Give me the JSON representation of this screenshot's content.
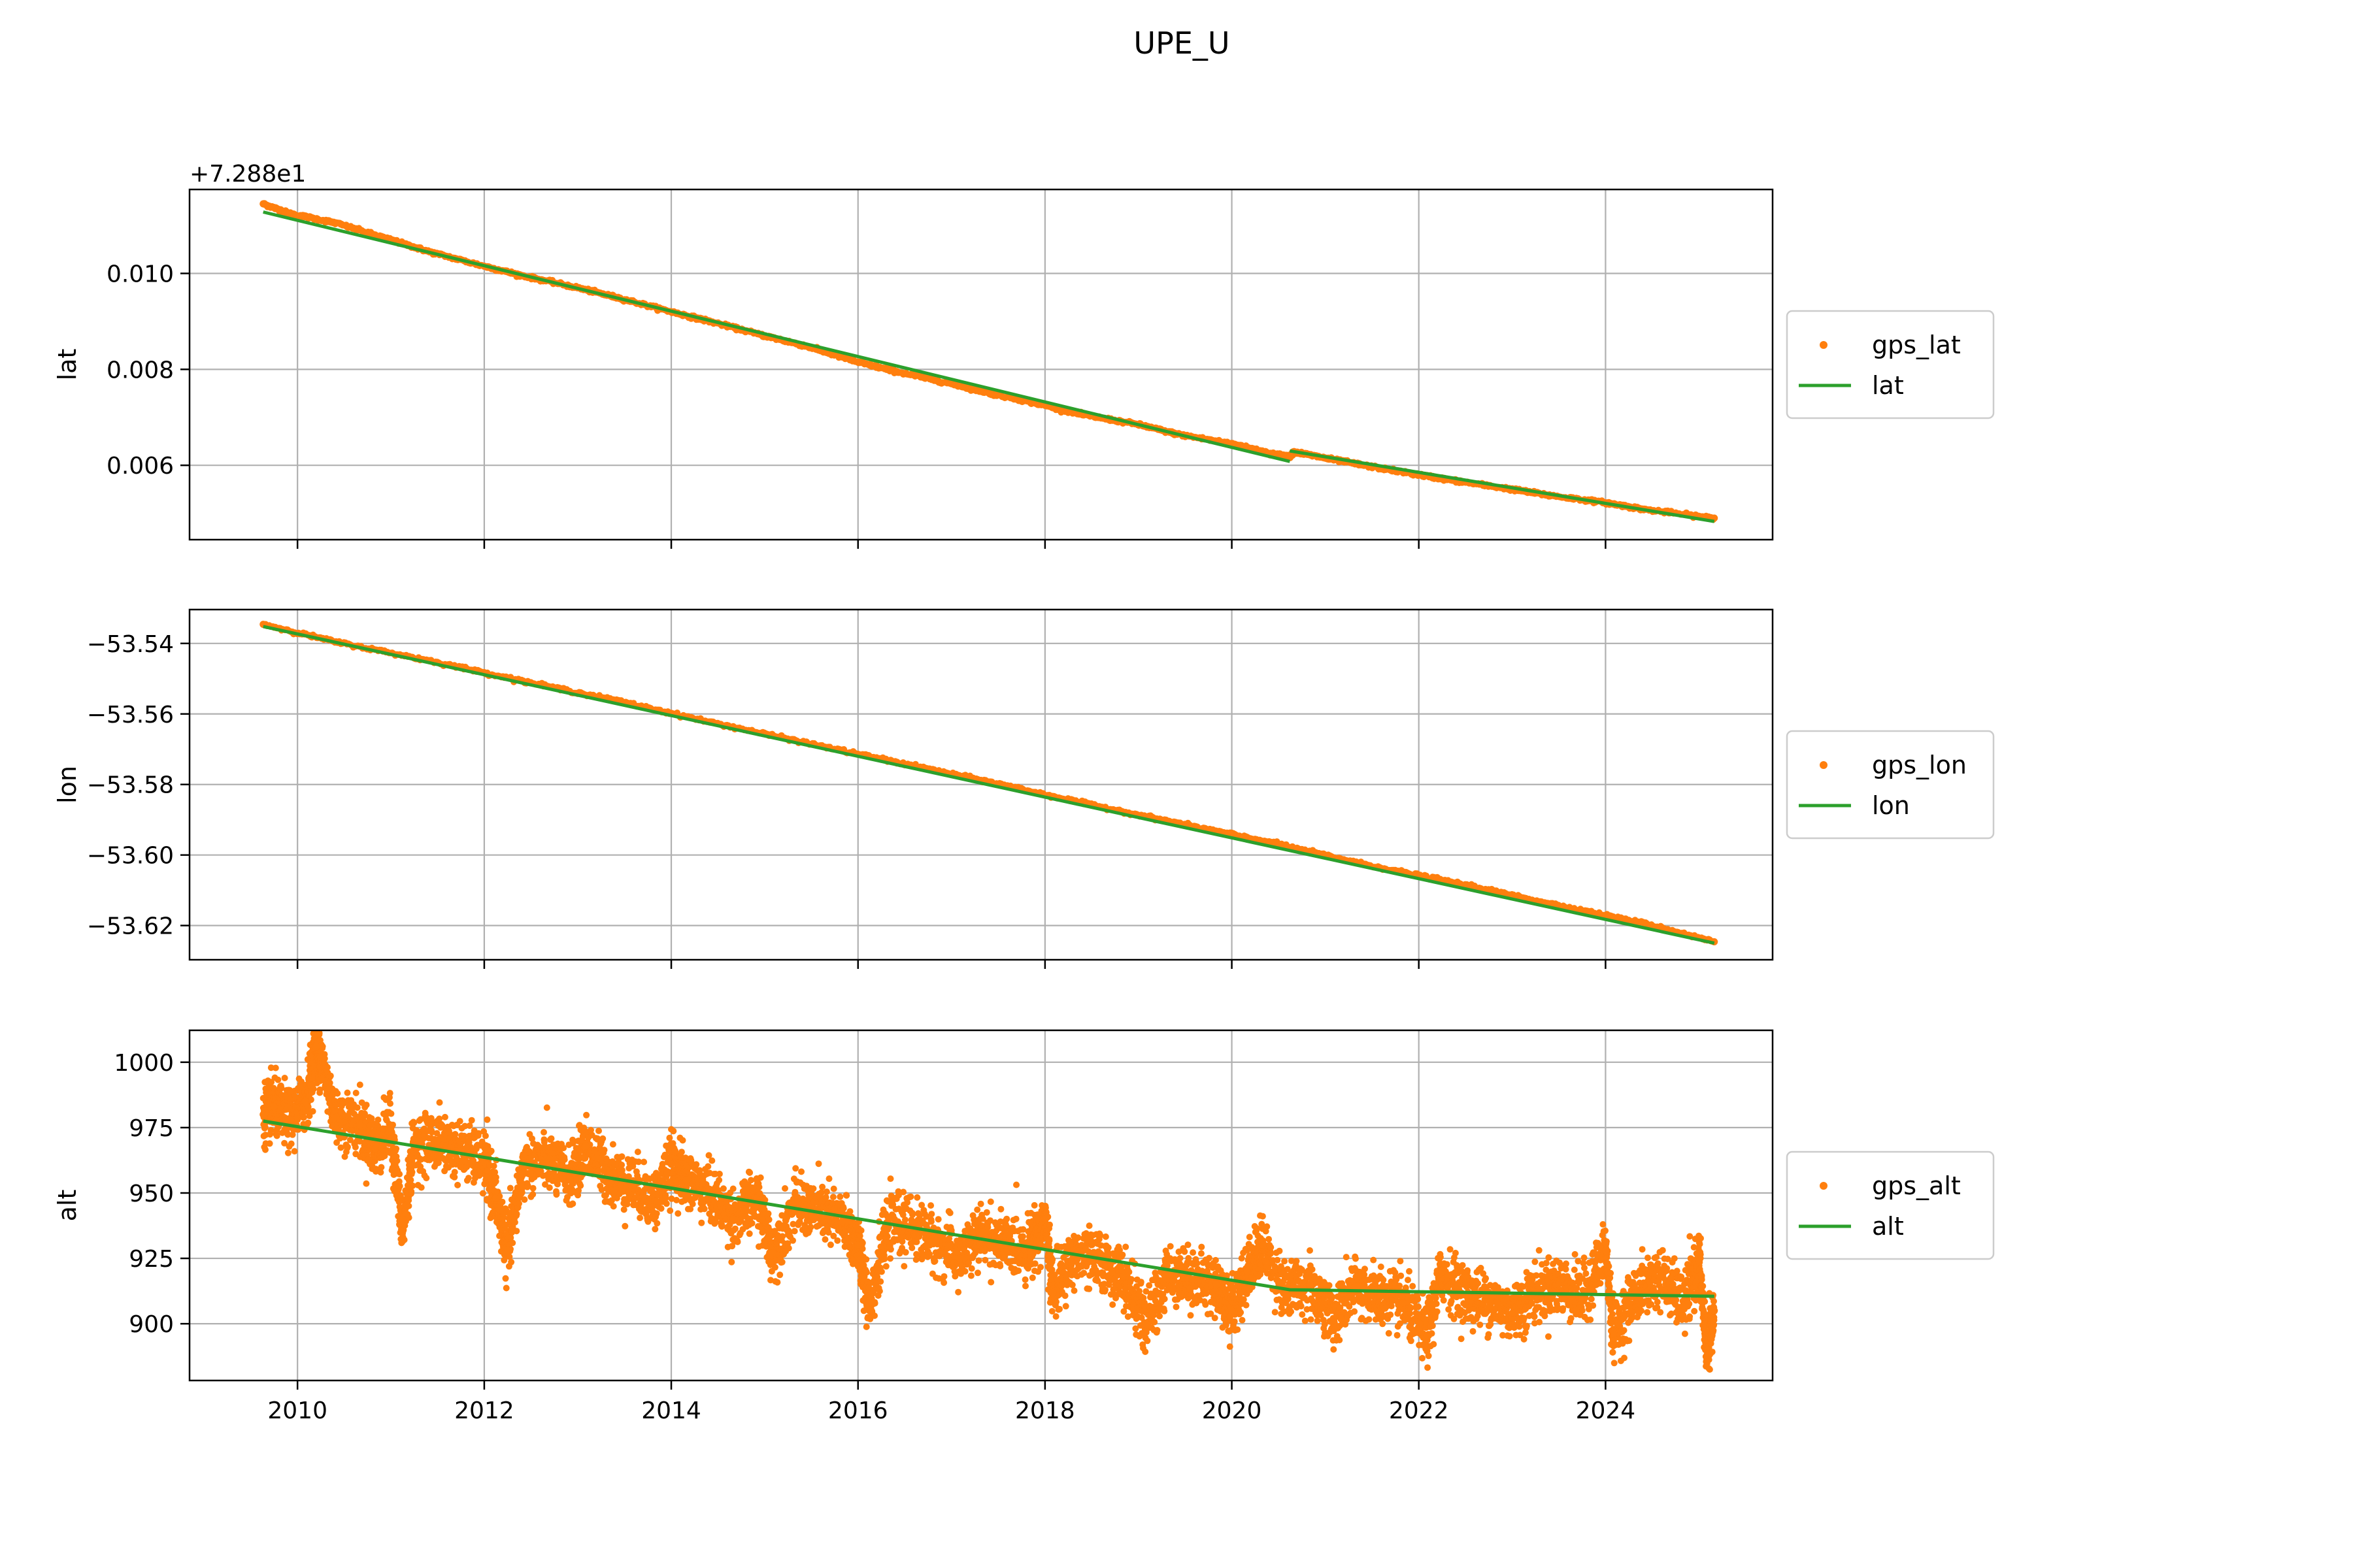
{
  "title": "UPE_U",
  "colors": {
    "gps_points": "#ff7f0e",
    "model_line": "#2ca02c",
    "grid": "#b0b0b0",
    "axes": "#000000"
  },
  "chart_data": [
    {
      "type": "scatter",
      "ylabel": "lat",
      "offset_text": "+7.288e1",
      "offset": 72.88,
      "xlim": [
        "2008-11-05",
        "2025-10-15"
      ],
      "ylim": [
        0.00445,
        0.01175
      ],
      "xticks": [
        {
          "date": "2010-01-01",
          "label": ""
        },
        {
          "date": "2012-01-01",
          "label": ""
        },
        {
          "date": "2014-01-01",
          "label": ""
        },
        {
          "date": "2016-01-01",
          "label": ""
        },
        {
          "date": "2018-01-01",
          "label": ""
        },
        {
          "date": "2020-01-01",
          "label": ""
        },
        {
          "date": "2022-01-01",
          "label": ""
        },
        {
          "date": "2024-01-01",
          "label": ""
        }
      ],
      "yticks": [
        {
          "value": 0.006,
          "label": "0.006"
        },
        {
          "value": 0.008,
          "label": "0.008"
        },
        {
          "value": 0.01,
          "label": "0.010"
        }
      ],
      "grid": true,
      "legend_placement": "outside-right",
      "series": [
        {
          "name": "gps_lat",
          "kind": "points",
          "color": "#ff7f0e",
          "points": [
            [
              "2009-08-20",
              0.01145
            ],
            [
              "2009-12-01",
              0.01125
            ],
            [
              "2010-06-01",
              0.01105
            ],
            [
              "2011-01-01",
              0.0107
            ],
            [
              "2011-06-01",
              0.01045
            ],
            [
              "2012-01-01",
              0.01015
            ],
            [
              "2012-06-01",
              0.00995
            ],
            [
              "2013-01-01",
              0.0097
            ],
            [
              "2013-06-01",
              0.0095
            ],
            [
              "2014-01-01",
              0.0092
            ],
            [
              "2014-06-01",
              0.009
            ],
            [
              "2015-01-01",
              0.0087
            ],
            [
              "2015-06-01",
              0.0085
            ],
            [
              "2016-01-01",
              0.00815
            ],
            [
              "2016-06-01",
              0.00795
            ],
            [
              "2017-01-01",
              0.0077
            ],
            [
              "2017-06-01",
              0.0075
            ],
            [
              "2018-01-01",
              0.00725
            ],
            [
              "2018-06-01",
              0.00705
            ],
            [
              "2019-01-01",
              0.00685
            ],
            [
              "2019-06-01",
              0.00665
            ],
            [
              "2020-01-01",
              0.00645
            ],
            [
              "2020-06-01",
              0.00625
            ],
            [
              "2020-08-15",
              0.00618
            ],
            [
              "2020-09-01",
              0.00628
            ],
            [
              "2021-01-01",
              0.00615
            ],
            [
              "2021-06-01",
              0.006
            ],
            [
              "2022-01-01",
              0.0058
            ],
            [
              "2022-06-01",
              0.00567
            ],
            [
              "2023-01-01",
              0.0055
            ],
            [
              "2023-06-01",
              0.00537
            ],
            [
              "2024-01-01",
              0.00522
            ],
            [
              "2024-06-01",
              0.00508
            ],
            [
              "2025-03-01",
              0.0049
            ]
          ]
        },
        {
          "name": "lat",
          "kind": "line",
          "color": "#2ca02c",
          "segments": [
            [
              [
                "2009-08-20",
                0.01128
              ],
              [
                "2020-08-15",
                0.00608
              ]
            ],
            [
              [
                "2020-08-15",
                0.0063
              ],
              [
                "2025-03-01",
                0.00483
              ]
            ]
          ]
        }
      ]
    },
    {
      "type": "scatter",
      "ylabel": "lon",
      "xlim": [
        "2008-11-05",
        "2025-10-15"
      ],
      "ylim": [
        -53.6297,
        -53.5304
      ],
      "xticks": [
        {
          "date": "2010-01-01",
          "label": ""
        },
        {
          "date": "2012-01-01",
          "label": ""
        },
        {
          "date": "2014-01-01",
          "label": ""
        },
        {
          "date": "2016-01-01",
          "label": ""
        },
        {
          "date": "2018-01-01",
          "label": ""
        },
        {
          "date": "2020-01-01",
          "label": ""
        },
        {
          "date": "2022-01-01",
          "label": ""
        },
        {
          "date": "2024-01-01",
          "label": ""
        }
      ],
      "yticks": [
        {
          "value": -53.62,
          "label": "−53.62"
        },
        {
          "value": -53.6,
          "label": "−53.60"
        },
        {
          "value": -53.58,
          "label": "−53.58"
        },
        {
          "value": -53.56,
          "label": "−53.56"
        },
        {
          "value": -53.54,
          "label": "−53.54"
        }
      ],
      "grid": true,
      "legend_placement": "outside-right",
      "series": [
        {
          "name": "gps_lon",
          "kind": "points",
          "color": "#ff7f0e",
          "points": [
            [
              "2009-08-20",
              -53.5346
            ],
            [
              "2010-06-01",
              -53.5396
            ],
            [
              "2011-06-01",
              -53.5449
            ],
            [
              "2012-06-01",
              -53.5507
            ],
            [
              "2013-06-01",
              -53.5562
            ],
            [
              "2014-06-01",
              -53.5623
            ],
            [
              "2015-06-01",
              -53.568
            ],
            [
              "2016-06-01",
              -53.5737
            ],
            [
              "2017-06-01",
              -53.5793
            ],
            [
              "2018-06-01",
              -53.5853
            ],
            [
              "2019-06-01",
              -53.5909
            ],
            [
              "2020-06-01",
              -53.5964
            ],
            [
              "2021-06-01",
              -53.6026
            ],
            [
              "2022-06-01",
              -53.608
            ],
            [
              "2023-06-01",
              -53.6138
            ],
            [
              "2024-06-01",
              -53.6194
            ],
            [
              "2025-03-01",
              -53.6246
            ]
          ]
        },
        {
          "name": "lon",
          "kind": "line",
          "color": "#2ca02c",
          "segments": [
            [
              [
                "2009-08-20",
                -53.5352
              ],
              [
                "2025-03-01",
                -53.625
              ]
            ]
          ]
        }
      ]
    },
    {
      "type": "scatter",
      "ylabel": "alt",
      "xlim": [
        "2008-11-05",
        "2025-10-15"
      ],
      "ylim": [
        878.3,
        1012.2
      ],
      "xticks": [
        {
          "date": "2010-01-01",
          "label": "2010"
        },
        {
          "date": "2012-01-01",
          "label": "2012"
        },
        {
          "date": "2014-01-01",
          "label": "2014"
        },
        {
          "date": "2016-01-01",
          "label": "2016"
        },
        {
          "date": "2018-01-01",
          "label": "2018"
        },
        {
          "date": "2020-01-01",
          "label": "2020"
        },
        {
          "date": "2022-01-01",
          "label": "2022"
        },
        {
          "date": "2024-01-01",
          "label": "2024"
        }
      ],
      "yticks": [
        {
          "value": 900,
          "label": "900"
        },
        {
          "value": 925,
          "label": "925"
        },
        {
          "value": 950,
          "label": "950"
        },
        {
          "value": 975,
          "label": "975"
        },
        {
          "value": 1000,
          "label": "1000"
        }
      ],
      "grid": true,
      "legend_placement": "outside-right",
      "series": [
        {
          "name": "gps_alt",
          "kind": "points",
          "color": "#ff7f0e",
          "points": [
            [
              "2009-08-20",
              980
            ],
            [
              "2009-10-01",
              983
            ],
            [
              "2009-12-01",
              978
            ],
            [
              "2010-02-01",
              985
            ],
            [
              "2010-03-15",
              1006
            ],
            [
              "2010-04-01",
              1002
            ],
            [
              "2010-06-01",
              979
            ],
            [
              "2010-09-01",
              976
            ],
            [
              "2010-11-01",
              967
            ],
            [
              "2011-01-01",
              975
            ],
            [
              "2011-02-15",
              935
            ],
            [
              "2011-04-01",
              968
            ],
            [
              "2011-07-01",
              970
            ],
            [
              "2011-10-01",
              966
            ],
            [
              "2012-01-01",
              962
            ],
            [
              "2012-02-15",
              948
            ],
            [
              "2012-04-01",
              928
            ],
            [
              "2012-06-01",
              960
            ],
            [
              "2012-09-01",
              963
            ],
            [
              "2012-12-01",
              955
            ],
            [
              "2013-02-01",
              968
            ],
            [
              "2013-05-01",
              957
            ],
            [
              "2013-08-01",
              953
            ],
            [
              "2013-11-01",
              947
            ],
            [
              "2014-01-01",
              961
            ],
            [
              "2014-03-01",
              955
            ],
            [
              "2014-06-01",
              950
            ],
            [
              "2014-09-01",
              940
            ],
            [
              "2014-12-01",
              948
            ],
            [
              "2015-02-01",
              927
            ],
            [
              "2015-05-01",
              945
            ],
            [
              "2015-08-01",
              943
            ],
            [
              "2015-11-01",
              939
            ],
            [
              "2016-01-01",
              930
            ],
            [
              "2016-02-15",
              908
            ],
            [
              "2016-05-01",
              938
            ],
            [
              "2016-08-01",
              937
            ],
            [
              "2016-11-01",
              931
            ],
            [
              "2017-02-01",
              925
            ],
            [
              "2017-05-01",
              934
            ],
            [
              "2017-08-01",
              930
            ],
            [
              "2017-11-01",
              929
            ],
            [
              "2018-01-01",
              940
            ],
            [
              "2018-02-01",
              912
            ],
            [
              "2018-05-01",
              926
            ],
            [
              "2018-08-01",
              924
            ],
            [
              "2018-11-01",
              918
            ],
            [
              "2019-02-01",
              900
            ],
            [
              "2019-05-01",
              920
            ],
            [
              "2019-08-01",
              917
            ],
            [
              "2019-11-01",
              915
            ],
            [
              "2020-01-01",
              905
            ],
            [
              "2020-03-01",
              920
            ],
            [
              "2020-05-01",
              930
            ],
            [
              "2020-08-01",
              912
            ],
            [
              "2020-11-01",
              915
            ],
            [
              "2021-02-01",
              902
            ],
            [
              "2021-05-01",
              914
            ],
            [
              "2021-08-01",
              910
            ],
            [
              "2021-11-01",
              908
            ],
            [
              "2022-02-01",
              895
            ],
            [
              "2022-04-01",
              920
            ],
            [
              "2022-07-01",
              911
            ],
            [
              "2022-10-01",
              909
            ],
            [
              "2023-01-01",
              904
            ],
            [
              "2023-04-01",
              912
            ],
            [
              "2023-07-01",
              915
            ],
            [
              "2023-10-01",
              910
            ],
            [
              "2024-01-01",
              928
            ],
            [
              "2024-02-01",
              896
            ],
            [
              "2024-05-01",
              912
            ],
            [
              "2024-08-01",
              918
            ],
            [
              "2024-11-01",
              907
            ],
            [
              "2025-01-01",
              924
            ],
            [
              "2025-02-01",
              888
            ],
            [
              "2025-03-01",
              905
            ]
          ]
        },
        {
          "name": "alt",
          "kind": "line",
          "color": "#2ca02c",
          "segments": [
            [
              [
                "2009-08-20",
                977.5
              ],
              [
                "2020-08-15",
                913.0
              ],
              [
                "2025-03-01",
                910.5
              ]
            ]
          ]
        }
      ]
    }
  ]
}
